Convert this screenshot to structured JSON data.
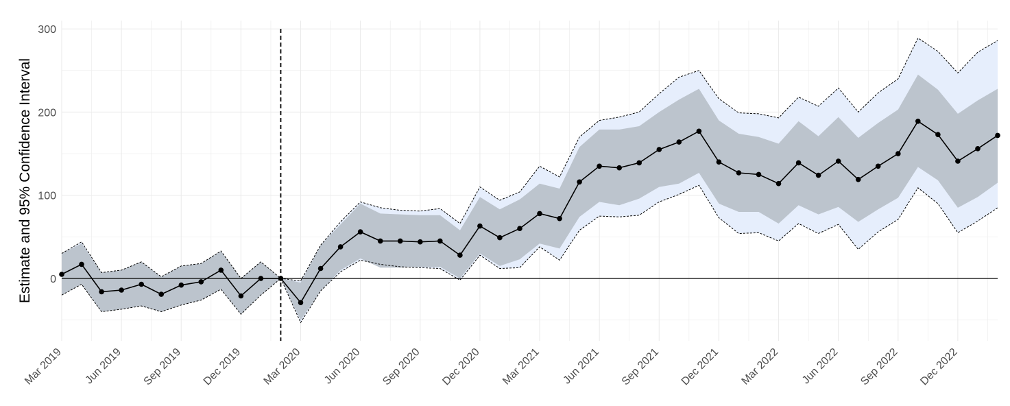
{
  "chart_data": {
    "type": "line",
    "title": "",
    "xlabel": "",
    "ylabel": "Estimate and 95% Confidence Interval",
    "ylim": [
      -75,
      310
    ],
    "yticks": [
      0,
      100,
      200,
      300
    ],
    "xlim": [
      "2019-03",
      "2023-02"
    ],
    "xticks": [
      "Mar 2019",
      "Jun 2019",
      "Sep 2019",
      "Dec 2019",
      "Mar 2020",
      "Jun 2020",
      "Sep 2020",
      "Dec 2020",
      "Mar 2021",
      "Jun 2021",
      "Sep 2021",
      "Dec 2021",
      "Mar 2022",
      "Jun 2022",
      "Sep 2022",
      "Dec 2022"
    ],
    "reference_line_y": 0,
    "event_line_x": "2020-02",
    "grid": true,
    "legend": "none",
    "colors": {
      "estimate": "#000000",
      "inner_band": "#bcc4cd",
      "outer_band": "#e6eefc",
      "outer_bound_line": "#000000",
      "grid": "#ebebeb"
    },
    "x": [
      "2019-03",
      "2019-04",
      "2019-05",
      "2019-06",
      "2019-07",
      "2019-08",
      "2019-09",
      "2019-10",
      "2019-11",
      "2019-12",
      "2020-01",
      "2020-02",
      "2020-03",
      "2020-04",
      "2020-05",
      "2020-06",
      "2020-07",
      "2020-08",
      "2020-09",
      "2020-10",
      "2020-11",
      "2020-12",
      "2021-01",
      "2021-02",
      "2021-03",
      "2021-04",
      "2021-05",
      "2021-06",
      "2021-07",
      "2021-08",
      "2021-09",
      "2021-10",
      "2021-11",
      "2021-12",
      "2022-01",
      "2022-02",
      "2022-03",
      "2022-04",
      "2022-05",
      "2022-06",
      "2022-07",
      "2022-08",
      "2022-09",
      "2022-10",
      "2022-11",
      "2022-12",
      "2023-01",
      "2023-02"
    ],
    "series": [
      {
        "values": [
          5,
          17,
          -16,
          -14,
          -7,
          -19,
          -8,
          -4,
          10,
          -21,
          0,
          0,
          -29,
          12,
          38,
          56,
          45,
          45,
          44,
          45,
          28,
          63,
          49,
          60,
          78,
          72,
          116,
          135,
          133,
          139,
          155,
          164,
          177,
          140,
          127,
          125,
          114,
          139,
          124,
          141,
          119,
          135,
          150,
          189,
          173,
          141,
          156,
          172
        ]
      }
    ],
    "inner_interval": {
      "lower": [
        -20,
        -7,
        -40,
        -37,
        -33,
        -40,
        -32,
        -26,
        -13,
        -43,
        -20,
        0,
        -50,
        -15,
        10,
        24,
        13,
        13,
        14,
        14,
        0,
        30,
        15,
        23,
        42,
        36,
        74,
        92,
        88,
        96,
        110,
        114,
        127,
        90,
        80,
        80,
        66,
        88,
        77,
        86,
        68,
        83,
        97,
        134,
        118,
        85,
        98,
        115
      ],
      "upper": [
        30,
        42,
        7,
        10,
        20,
        2,
        15,
        18,
        33,
        0,
        20,
        0,
        -5,
        40,
        65,
        90,
        78,
        77,
        76,
        76,
        58,
        98,
        83,
        95,
        114,
        108,
        158,
        179,
        179,
        183,
        200,
        215,
        228,
        190,
        174,
        170,
        162,
        189,
        171,
        194,
        169,
        187,
        203,
        245,
        227,
        198,
        214,
        228
      ]
    },
    "outer_interval": {
      "lower": [
        -20,
        -7,
        -40,
        -37,
        -33,
        -40,
        -32,
        -26,
        -13,
        -43,
        -20,
        0,
        -53,
        -15,
        8,
        22,
        17,
        14,
        13,
        12,
        -2,
        28,
        12,
        13,
        38,
        22,
        58,
        75,
        74,
        76,
        92,
        101,
        112,
        73,
        54,
        55,
        45,
        66,
        54,
        65,
        35,
        56,
        71,
        109,
        90,
        55,
        69,
        85
      ],
      "upper": [
        30,
        44,
        7,
        10,
        20,
        2,
        15,
        18,
        33,
        0,
        20,
        0,
        -3,
        40,
        68,
        92,
        85,
        82,
        81,
        84,
        66,
        110,
        94,
        104,
        135,
        122,
        170,
        190,
        194,
        200,
        222,
        242,
        250,
        216,
        199,
        198,
        193,
        218,
        207,
        229,
        200,
        223,
        240,
        289,
        273,
        247,
        272,
        286
      ]
    }
  }
}
